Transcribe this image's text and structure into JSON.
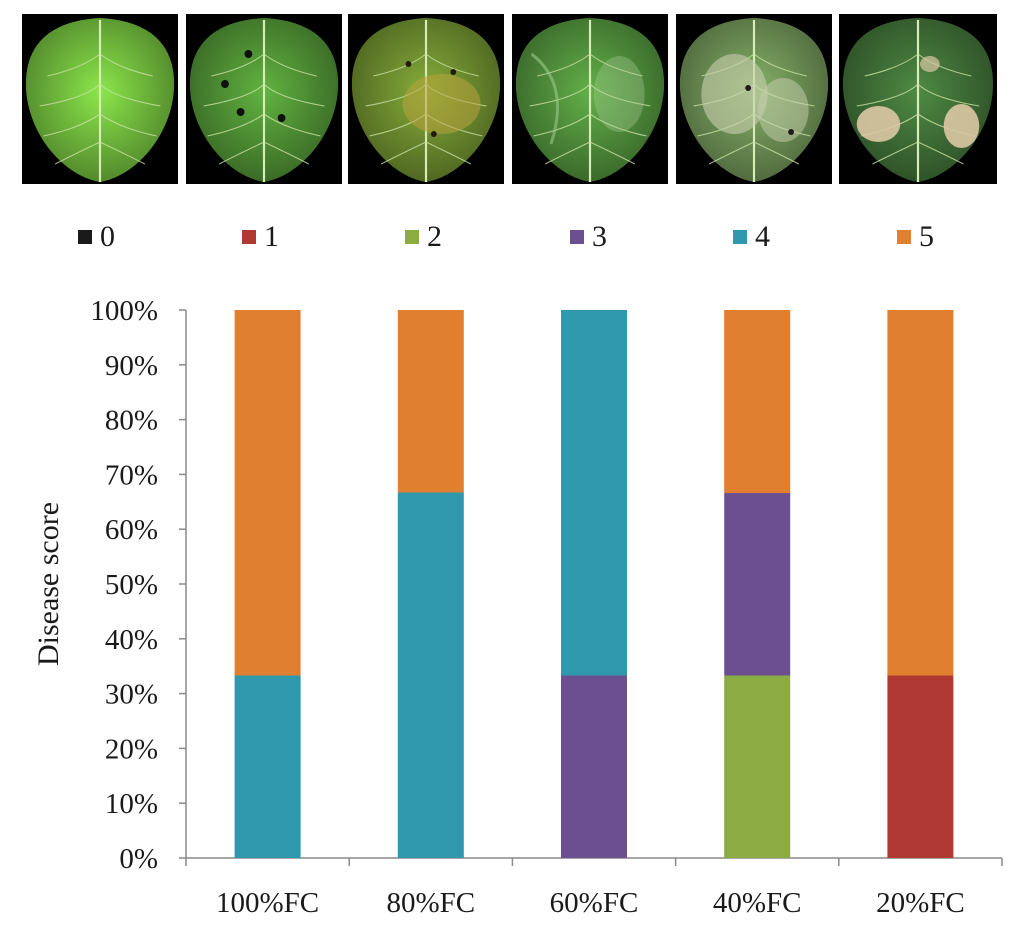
{
  "photo_panels": [
    {
      "score": "0",
      "tone": "#6fb83c",
      "lesion": "none"
    },
    {
      "score": "1",
      "tone": "#4e8f34",
      "lesion": "spots"
    },
    {
      "score": "2",
      "tone": "#6b8a2e",
      "lesion": "yellowing"
    },
    {
      "score": "3",
      "tone": "#4f8d3a",
      "lesion": "wilting"
    },
    {
      "score": "4",
      "tone": "#6c8f55",
      "lesion": "pale"
    },
    {
      "score": "5",
      "tone": "#3f6e36",
      "lesion": "necrosis"
    }
  ],
  "legend": [
    {
      "label": "0",
      "color": "#1a1a1a"
    },
    {
      "label": "1",
      "color": "#b03a33"
    },
    {
      "label": "2",
      "color": "#8bab43"
    },
    {
      "label": "3",
      "color": "#6b4f8f"
    },
    {
      "label": "4",
      "color": "#2f98ad"
    },
    {
      "label": "5",
      "color": "#e07f30"
    }
  ],
  "chart_data": {
    "type": "bar",
    "stacked": true,
    "categories": [
      "100%FC",
      "80%FC",
      "60%FC",
      "40%FC",
      "20%FC"
    ],
    "series": [
      {
        "name": "0",
        "color": "#1a1a1a",
        "values": [
          0,
          0,
          0,
          0,
          0
        ]
      },
      {
        "name": "1",
        "color": "#b03a33",
        "values": [
          0,
          0,
          0,
          0,
          33.3
        ]
      },
      {
        "name": "2",
        "color": "#8bab43",
        "values": [
          0,
          0,
          0,
          33.3,
          0
        ]
      },
      {
        "name": "3",
        "color": "#6b4f8f",
        "values": [
          0,
          0,
          33.3,
          33.3,
          0
        ]
      },
      {
        "name": "4",
        "color": "#2f98ad",
        "values": [
          33.3,
          66.7,
          66.7,
          0,
          0
        ]
      },
      {
        "name": "5",
        "color": "#e07f30",
        "values": [
          66.7,
          33.3,
          0,
          33.4,
          66.7
        ]
      }
    ],
    "ylabel": "Disease score",
    "xlabel": "",
    "ylim": [
      0,
      100
    ],
    "yticks": [
      "0%",
      "10%",
      "20%",
      "30%",
      "40%",
      "50%",
      "60%",
      "70%",
      "80%",
      "90%",
      "100%"
    ],
    "grid": false,
    "legend_position": "top"
  }
}
